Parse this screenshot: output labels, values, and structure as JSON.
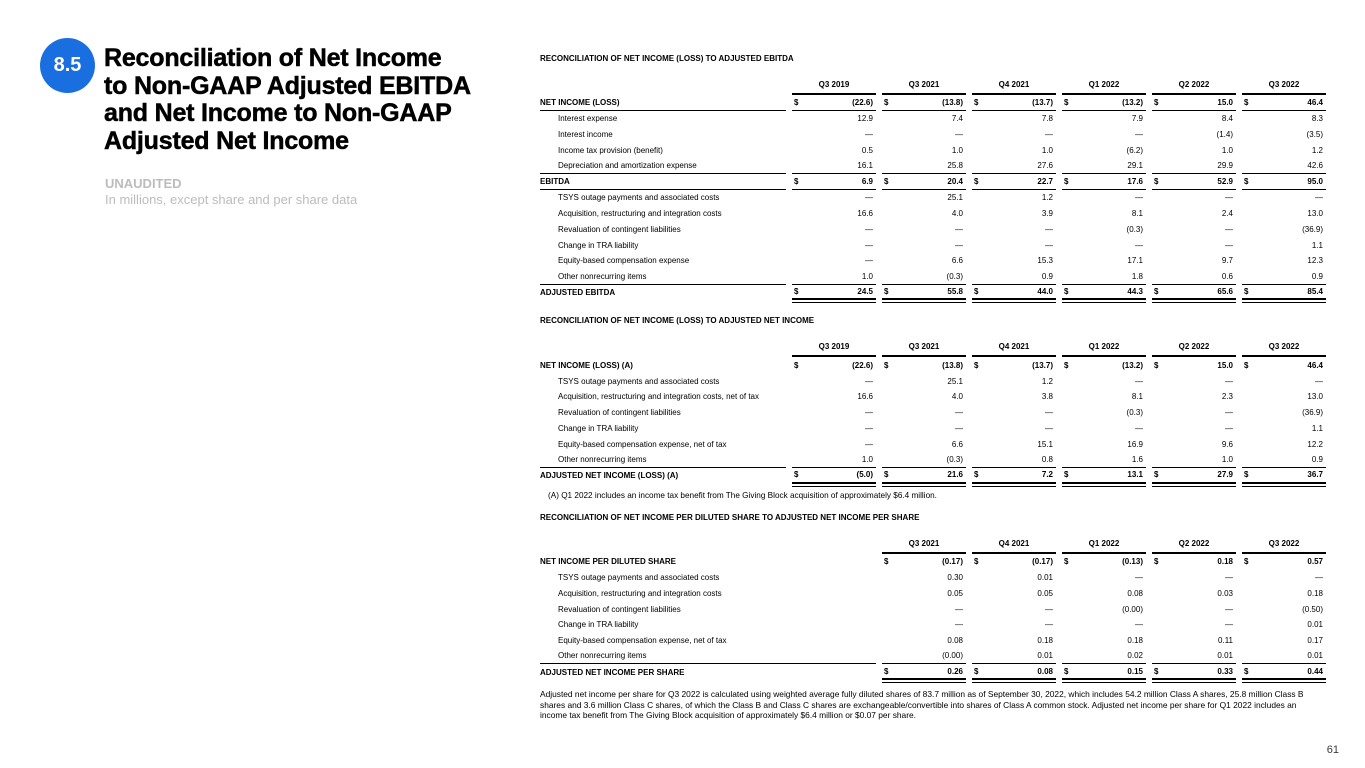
{
  "page": {
    "number": "61"
  },
  "header": {
    "badge": "8.5",
    "badge_color": "#1a6fe0",
    "title_lines": [
      "Reconciliation of Net Income",
      "to Non-GAAP Adjusted EBITDA",
      "and Net Income to Non-GAAP",
      "Adjusted Net Income"
    ],
    "unaudited": "UNAUDITED",
    "units_note": "In millions, except share and per share data"
  },
  "tables": [
    {
      "title": "RECONCILIATION OF NET INCOME (LOSS) TO ADJUSTED EBITDA",
      "columns": [
        "Q3 2019",
        "Q3 2021",
        "Q4 2021",
        "Q1 2022",
        "Q2 2022",
        "Q3 2022"
      ],
      "rows": [
        {
          "label": "NET INCOME (LOSS)",
          "bold": true,
          "dollar": true,
          "rule_below": true,
          "values": [
            "(22.6)",
            "(13.8)",
            "(13.7)",
            "(13.2)",
            "15.0",
            "46.4"
          ]
        },
        {
          "label": "Interest expense",
          "indent": true,
          "values": [
            "12.9",
            "7.4",
            "7.8",
            "7.9",
            "8.4",
            "8.3"
          ]
        },
        {
          "label": "Interest income",
          "indent": true,
          "values": [
            "—",
            "—",
            "—",
            "—",
            "(1.4)",
            "(3.5)"
          ]
        },
        {
          "label": "Income tax provision (benefit)",
          "indent": true,
          "values": [
            "0.5",
            "1.0",
            "1.0",
            "(6.2)",
            "1.0",
            "1.2"
          ]
        },
        {
          "label": "Depreciation and amortization expense",
          "indent": true,
          "rule_below": true,
          "values": [
            "16.1",
            "25.8",
            "27.6",
            "29.1",
            "29.9",
            "42.6"
          ]
        },
        {
          "label": "EBITDA",
          "bold": true,
          "dollar": true,
          "rule_below": true,
          "values": [
            "6.9",
            "20.4",
            "22.7",
            "17.6",
            "52.9",
            "95.0"
          ]
        },
        {
          "label": "TSYS outage payments and associated costs",
          "indent": true,
          "values": [
            "—",
            "25.1",
            "1.2",
            "—",
            "—",
            "—"
          ]
        },
        {
          "label": "Acquisition, restructuring and integration costs",
          "indent": true,
          "values": [
            "16.6",
            "4.0",
            "3.9",
            "8.1",
            "2.4",
            "13.0"
          ]
        },
        {
          "label": "Revaluation of contingent liabilities",
          "indent": true,
          "values": [
            "—",
            "—",
            "—",
            "(0.3)",
            "—",
            "(36.9)"
          ]
        },
        {
          "label": "Change in TRA liability",
          "indent": true,
          "values": [
            "—",
            "—",
            "—",
            "—",
            "—",
            "1.1"
          ]
        },
        {
          "label": "Equity-based compensation expense",
          "indent": true,
          "values": [
            "—",
            "6.6",
            "15.3",
            "17.1",
            "9.7",
            "12.3"
          ]
        },
        {
          "label": "Other nonrecurring items",
          "indent": true,
          "rule_below": true,
          "values": [
            "1.0",
            "(0.3)",
            "0.9",
            "1.8",
            "0.6",
            "0.9"
          ]
        },
        {
          "label": "ADJUSTED EBITDA",
          "bold": true,
          "dollar": true,
          "double_below": true,
          "values": [
            "24.5",
            "55.8",
            "44.0",
            "44.3",
            "65.6",
            "85.4"
          ]
        }
      ]
    },
    {
      "title": "RECONCILIATION OF NET INCOME (LOSS) TO ADJUSTED NET INCOME",
      "columns": [
        "Q3 2019",
        "Q3 2021",
        "Q4 2021",
        "Q1 2022",
        "Q2 2022",
        "Q3 2022"
      ],
      "rows": [
        {
          "label": "NET INCOME (LOSS) (A)",
          "bold": true,
          "dollar": true,
          "values": [
            "(22.6)",
            "(13.8)",
            "(13.7)",
            "(13.2)",
            "15.0",
            "46.4"
          ]
        },
        {
          "label": "TSYS outage payments and associated costs",
          "indent": true,
          "values": [
            "—",
            "25.1",
            "1.2",
            "—",
            "—",
            "—"
          ]
        },
        {
          "label": "Acquisition, restructuring and integration costs, net of tax",
          "indent": true,
          "values": [
            "16.6",
            "4.0",
            "3.8",
            "8.1",
            "2.3",
            "13.0"
          ]
        },
        {
          "label": "Revaluation of contingent liabilities",
          "indent": true,
          "values": [
            "—",
            "—",
            "—",
            "(0.3)",
            "—",
            "(36.9)"
          ]
        },
        {
          "label": "Change in TRA liability",
          "indent": true,
          "values": [
            "—",
            "—",
            "—",
            "—",
            "—",
            "1.1"
          ]
        },
        {
          "label": "Equity-based compensation expense, net of tax",
          "indent": true,
          "values": [
            "—",
            "6.6",
            "15.1",
            "16.9",
            "9.6",
            "12.2"
          ]
        },
        {
          "label": "Other nonrecurring items",
          "indent": true,
          "rule_below": true,
          "values": [
            "1.0",
            "(0.3)",
            "0.8",
            "1.6",
            "1.0",
            "0.9"
          ]
        },
        {
          "label": "ADJUSTED NET INCOME (LOSS) (A)",
          "bold": true,
          "dollar": true,
          "double_below": true,
          "values": [
            "(5.0)",
            "21.6",
            "7.2",
            "13.1",
            "27.9",
            "36.7"
          ]
        }
      ]
    },
    {
      "title": "RECONCILIATION OF NET INCOME PER DILUTED SHARE TO ADJUSTED NET INCOME PER SHARE",
      "columns": [
        "Q3 2021",
        "Q4 2021",
        "Q1 2022",
        "Q2 2022",
        "Q3 2022"
      ],
      "rows": [
        {
          "label": "NET INCOME PER DILUTED SHARE",
          "bold": true,
          "dollar": true,
          "values": [
            "(0.17)",
            "(0.17)",
            "(0.13)",
            "0.18",
            "0.57"
          ]
        },
        {
          "label": "TSYS outage payments and associated costs",
          "indent": true,
          "values": [
            "0.30",
            "0.01",
            "—",
            "—",
            "—"
          ]
        },
        {
          "label": "Acquisition, restructuring and integration costs",
          "indent": true,
          "values": [
            "0.05",
            "0.05",
            "0.08",
            "0.03",
            "0.18"
          ]
        },
        {
          "label": "Revaluation of contingent liabilities",
          "indent": true,
          "values": [
            "—",
            "—",
            "(0.00)",
            "—",
            "(0.50)"
          ]
        },
        {
          "label": "Change in TRA liability",
          "indent": true,
          "values": [
            "—",
            "—",
            "—",
            "—",
            "0.01"
          ]
        },
        {
          "label": "Equity-based compensation expense, net of tax",
          "indent": true,
          "values": [
            "0.08",
            "0.18",
            "0.18",
            "0.11",
            "0.17"
          ]
        },
        {
          "label": "Other nonrecurring items",
          "indent": true,
          "rule_below": true,
          "values": [
            "(0.00)",
            "0.01",
            "0.02",
            "0.01",
            "0.01"
          ]
        },
        {
          "label": "ADJUSTED NET INCOME PER SHARE",
          "bold": true,
          "dollar": true,
          "double_below": true,
          "values": [
            "0.26",
            "0.08",
            "0.15",
            "0.33",
            "0.44"
          ]
        }
      ]
    }
  ],
  "footnote_a": "(A) Q1 2022 includes an income tax benefit from The Giving Block acquisition of approximately $6.4 million.",
  "footer_note": "Adjusted net income per share for Q3 2022 is calculated using weighted average fully diluted shares of 83.7 million as of September 30, 2022, which includes 54.2 million Class A shares, 25.8 million Class B shares and 3.6 million Class C shares, of which the Class B and Class C shares are exchangeable/convertible into shares of Class A common stock. Adjusted net income per share for Q1 2022 includes an income tax benefit from The Giving Block acquisition of approximately $6.4 million or $0.07 per share."
}
